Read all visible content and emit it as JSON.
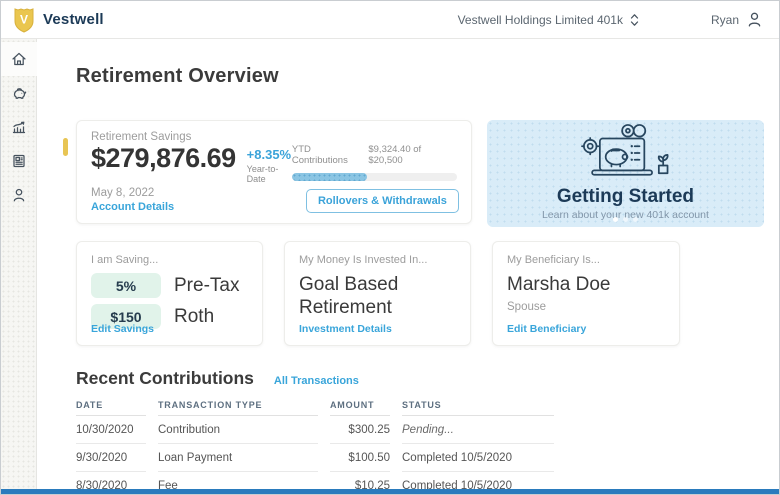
{
  "topbar": {
    "brand": "Vestwell",
    "brand_initial": "V",
    "org_selector": "Vestwell Holdings Limited 401k",
    "user_name": "Ryan"
  },
  "sidebar": {
    "items": [
      {
        "label": "home",
        "active": true
      },
      {
        "label": "savings",
        "active": false
      },
      {
        "label": "performance",
        "active": false
      },
      {
        "label": "statements",
        "active": false
      },
      {
        "label": "profile",
        "active": false
      }
    ]
  },
  "page": {
    "title": "Retirement Overview"
  },
  "savings_card": {
    "label": "Retirement Savings",
    "balance": "$279,876.69",
    "change": "+8.35%",
    "change_caption": "Year-to-Date",
    "as_of_date": "May 8, 2022",
    "account_details_link": "Account Details",
    "ytd_label": "YTD Contributions",
    "ytd_amount": "$9,324.40 of $20,500",
    "ytd_percent": 45.5,
    "rollovers_button": "Rollovers & Withdrawals"
  },
  "getting_started": {
    "title": "Getting Started",
    "subtitle": "Learn about your new 401k account",
    "dot_count": 3,
    "active_dot": 0
  },
  "saving_card": {
    "label": "I am Saving...",
    "rows": [
      {
        "value": "5%",
        "type": "Pre-Tax"
      },
      {
        "value": "$150",
        "type": "Roth"
      }
    ],
    "edit_link": "Edit Savings"
  },
  "investment_card": {
    "label": "My Money Is Invested In...",
    "value": "Goal Based Retirement",
    "details_link": "Investment Details"
  },
  "beneficiary_card": {
    "label": "My Beneficiary Is...",
    "name": "Marsha Doe",
    "relationship": "Spouse",
    "edit_link": "Edit Beneficiary"
  },
  "transactions": {
    "title": "Recent Contributions",
    "all_link": "All Transactions",
    "columns": [
      "DATE",
      "TRANSACTION TYPE",
      "AMOUNT",
      "STATUS"
    ],
    "rows": [
      [
        "10/30/2020",
        "Contribution",
        "$300.25",
        "Pending..."
      ],
      [
        "9/30/2020",
        "Loan Payment",
        "$100.50",
        "Completed 10/5/2020"
      ],
      [
        "8/30/2020",
        "Fee",
        "$10.25",
        "Completed 10/5/2020"
      ]
    ]
  },
  "colors": {
    "brand_navy": "#1c3a57",
    "brand_gold": "#eac64f",
    "link_blue": "#3ba3d9",
    "mint_pill": "#e1f3ea",
    "progress_fill": "#8bc5e3",
    "getting_started_bg": "#d9ecf8",
    "bottom_bar": "#2a7bbd",
    "accent_yellow": "#e8c554"
  }
}
